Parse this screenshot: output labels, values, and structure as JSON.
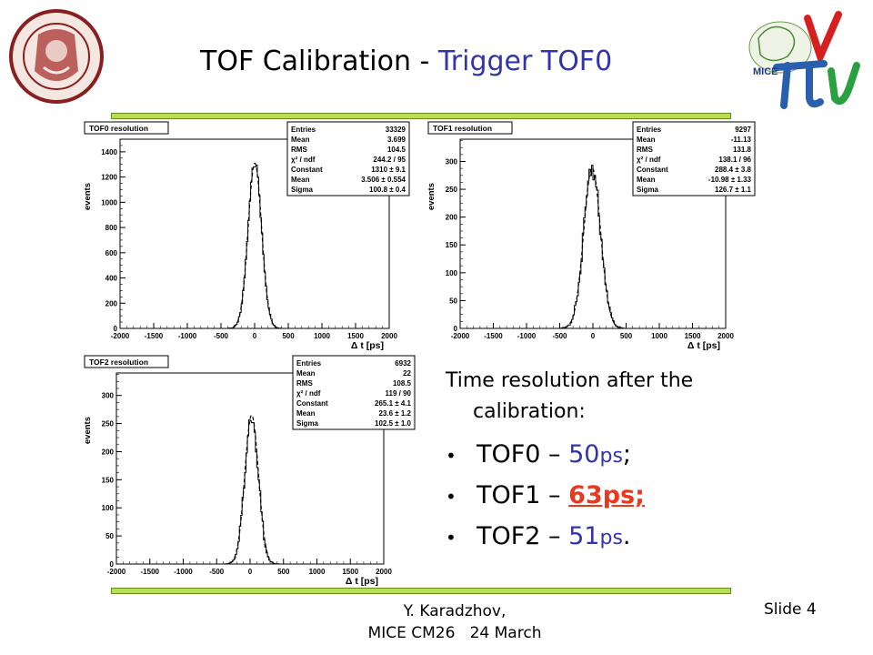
{
  "title": {
    "main": "TOF Calibration",
    "separator": " - ",
    "accent": "Trigger TOF0"
  },
  "logos": {
    "left_icon": "university-seal-icon",
    "right_icon": "mice-logo-icon",
    "right_text": "MICE"
  },
  "colors": {
    "accent_blue": "#3333aa",
    "highlight_red": "#e8381d",
    "bar_green": "#b5e14c"
  },
  "text_block": {
    "intro": "Time resolution after the calibration:",
    "items": [
      {
        "name": "TOF0",
        "dash": " – ",
        "value": "50",
        "unit": "ps",
        "end": ";"
      },
      {
        "name": "TOF1",
        "dash": " – ",
        "value": "63ps;"
      },
      {
        "name": "TOF2",
        "dash": " – ",
        "value": "51",
        "unit": "ps",
        "end": "."
      }
    ]
  },
  "footer": {
    "author": "Y. Karadzhov,",
    "event": "MICE CM26   24 March",
    "slide": "Slide 4"
  },
  "chart_data": [
    {
      "type": "histogram",
      "title": "TOF0 resolution",
      "xlabel": "Δ t  [ps]",
      "ylabel": "events",
      "xlim": [
        -2000,
        2000
      ],
      "ylim": [
        0,
        1500
      ],
      "xticks": [
        -2000,
        -1500,
        -1000,
        -500,
        0,
        500,
        1000,
        1500,
        2000
      ],
      "yticks": [
        0,
        200,
        400,
        600,
        800,
        1000,
        1200,
        1400
      ],
      "gaussian": {
        "constant": 1310,
        "mean": 3.506,
        "sigma": 100.8
      },
      "stats": [
        [
          "Entries",
          "33329"
        ],
        [
          "Mean",
          "3.699"
        ],
        [
          "RMS",
          "104.5"
        ],
        [
          "χ² / ndf",
          "244.2 / 95"
        ],
        [
          "Constant",
          "1310 ± 9.1"
        ],
        [
          "Mean",
          "3.506 ± 0.554"
        ],
        [
          "Sigma",
          "100.8 ± 0.4"
        ]
      ]
    },
    {
      "type": "histogram",
      "title": "TOF1 resolution",
      "xlabel": "Δ t  [ps]",
      "ylabel": "events",
      "xlim": [
        -2000,
        2000
      ],
      "ylim": [
        0,
        340
      ],
      "xticks": [
        -2000,
        -1500,
        -1000,
        -500,
        0,
        500,
        1000,
        1500,
        2000
      ],
      "yticks": [
        0,
        50,
        100,
        150,
        200,
        250,
        300
      ],
      "gaussian": {
        "constant": 288.4,
        "mean": -10.98,
        "sigma": 126.7
      },
      "stats": [
        [
          "Entries",
          "9297"
        ],
        [
          "Mean",
          "-11.13"
        ],
        [
          "RMS",
          "131.8"
        ],
        [
          "χ² / ndf",
          "138.1 / 96"
        ],
        [
          "Constant",
          "288.4 ± 3.8"
        ],
        [
          "Mean",
          "-10.98 ± 1.33"
        ],
        [
          "Sigma",
          "126.7 ± 1.1"
        ]
      ]
    },
    {
      "type": "histogram",
      "title": "TOF2 resolution",
      "xlabel": "Δ t  [ps]",
      "ylabel": "events",
      "xlim": [
        -2000,
        2000
      ],
      "ylim": [
        0,
        340
      ],
      "xticks": [
        -2000,
        -1500,
        -1000,
        -500,
        0,
        500,
        1000,
        1500,
        2000
      ],
      "yticks": [
        0,
        50,
        100,
        150,
        200,
        250,
        300
      ],
      "gaussian": {
        "constant": 265.1,
        "mean": 23.6,
        "sigma": 102.5
      },
      "stats": [
        [
          "Entries",
          "6932"
        ],
        [
          "Mean",
          "22"
        ],
        [
          "RMS",
          "108.5"
        ],
        [
          "χ² / ndf",
          "119 / 90"
        ],
        [
          "Constant",
          "265.1 ± 4.1"
        ],
        [
          "Mean",
          "23.6 ± 1.2"
        ],
        [
          "Sigma",
          "102.5 ± 1.0"
        ]
      ]
    }
  ]
}
